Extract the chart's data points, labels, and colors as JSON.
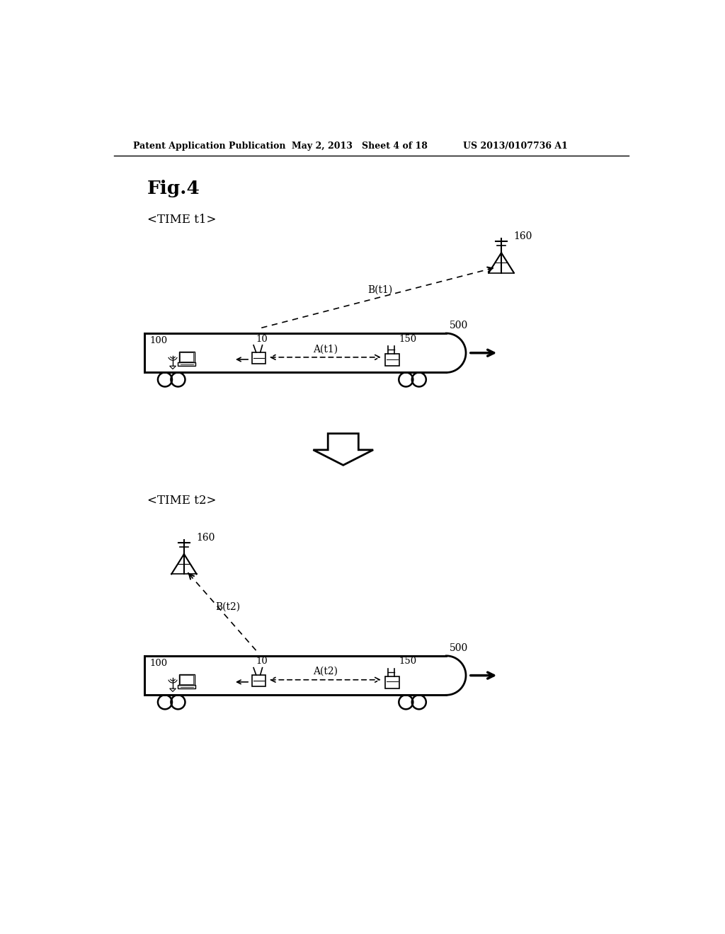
{
  "bg_color": "#ffffff",
  "header_left": "Patent Application Publication",
  "header_mid": "May 2, 2013   Sheet 4 of 18",
  "header_right": "US 2013/0107736 A1",
  "fig_label": "Fig.4",
  "time1_label": "<TIME t1>",
  "time2_label": "<TIME t2>",
  "tower_label1": "160",
  "tower_label2": "160",
  "train_label1": "500",
  "train_label2": "500",
  "device_label1": "100",
  "device_label2": "100",
  "router_label1": "10",
  "router_label2": "10",
  "antenna_label1": "150",
  "antenna_label2": "150",
  "link_label1": "A(t1)",
  "link_label2": "A(t2)",
  "wireless_label1": "B(t1)",
  "wireless_label2": "B(t2)"
}
